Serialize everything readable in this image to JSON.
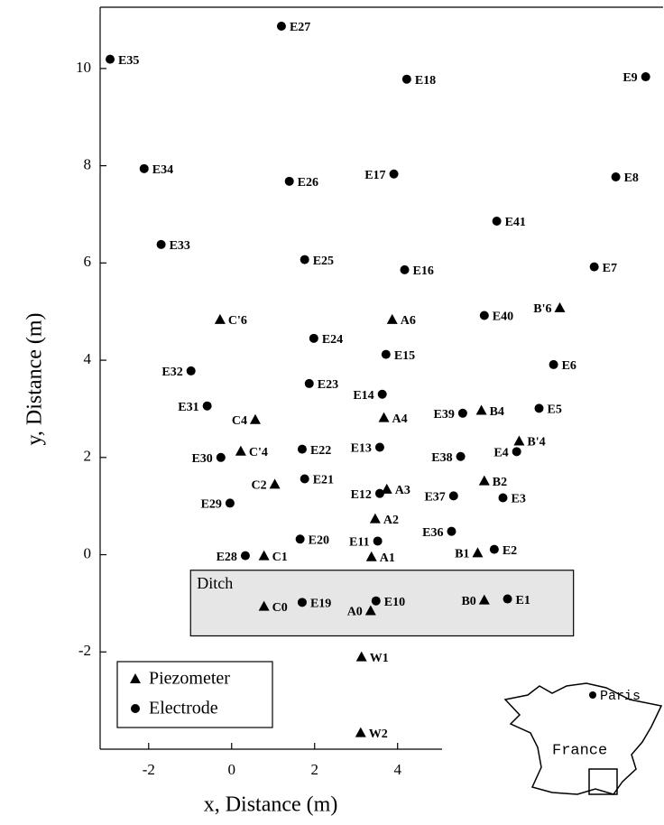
{
  "chart_data": {
    "type": "scatter",
    "xlabel": "x, Distance (m)",
    "ylabel": "y, Distance (m)",
    "xlim": [
      -3.17,
      10.4
    ],
    "ylim": [
      -4,
      11.26
    ],
    "xticks": [
      -2,
      0,
      2,
      4
    ],
    "yticks": [
      -2,
      0,
      2,
      4,
      6,
      8,
      10
    ],
    "legend": "lower left",
    "series": [
      {
        "name": "Piezometer",
        "marker": "triangle",
        "color": "#000000",
        "labels": [
          "C'6",
          "A6",
          "B'6",
          "C4",
          "B4",
          "A4",
          "B'4",
          "C'4",
          "B2",
          "C2",
          "A3",
          "A2",
          "C1",
          "A1",
          "B1",
          "C0",
          "B0",
          "A0",
          "W1",
          "W2"
        ],
        "x": [
          -0.28,
          3.87,
          7.91,
          0.57,
          6.02,
          3.67,
          6.93,
          0.22,
          6.09,
          1.04,
          3.74,
          3.46,
          0.78,
          3.37,
          5.93,
          0.78,
          6.09,
          3.35,
          3.13,
          3.11
        ],
        "values": [
          4.84,
          4.84,
          5.08,
          2.78,
          2.97,
          2.82,
          2.34,
          2.13,
          1.52,
          1.45,
          1.35,
          0.74,
          -0.02,
          -0.04,
          0.04,
          -1.06,
          -0.93,
          -1.15,
          -2.1,
          -3.66
        ]
      },
      {
        "name": "Electrode",
        "marker": "circle",
        "color": "#000000",
        "labels": [
          "E27",
          "E35",
          "E18",
          "E9",
          "E34",
          "E26",
          "E17",
          "E8",
          "E41",
          "E33",
          "E25",
          "E16",
          "E7",
          "E40",
          "E24",
          "E15",
          "E6",
          "E32",
          "E23",
          "E14",
          "E31",
          "E39",
          "E5",
          "E22",
          "E13",
          "E4",
          "E30",
          "E38",
          "E21",
          "E12",
          "E37",
          "E3",
          "E29",
          "E36",
          "E20",
          "E11",
          "E2",
          "E28",
          "E19",
          "E10",
          "E1"
        ],
        "x": [
          1.2,
          -2.93,
          4.22,
          9.98,
          -2.11,
          1.39,
          3.91,
          9.26,
          6.39,
          -1.7,
          1.76,
          4.17,
          8.74,
          6.09,
          1.98,
          3.72,
          7.76,
          -0.98,
          1.87,
          3.63,
          -0.59,
          5.57,
          7.41,
          1.7,
          3.57,
          6.87,
          -0.26,
          5.52,
          1.76,
          3.57,
          5.35,
          6.54,
          -0.04,
          5.3,
          1.65,
          3.52,
          6.33,
          0.33,
          1.7,
          3.48,
          6.65
        ],
        "values": [
          10.87,
          10.19,
          9.78,
          9.83,
          7.94,
          7.68,
          7.83,
          7.77,
          6.86,
          6.38,
          6.07,
          5.86,
          5.92,
          4.92,
          4.45,
          4.12,
          3.91,
          3.78,
          3.52,
          3.3,
          3.06,
          2.91,
          3.01,
          2.17,
          2.21,
          2.12,
          2.0,
          2.02,
          1.56,
          1.26,
          1.21,
          1.17,
          1.06,
          0.48,
          0.32,
          0.28,
          0.11,
          -0.02,
          -0.98,
          -0.95,
          -0.91
        ]
      }
    ],
    "ditch": {
      "label": "Ditch",
      "x": [
        -0.99,
        8.24
      ],
      "y": [
        -0.32,
        -1.67
      ],
      "color": "#e6e6e6"
    },
    "inset": {
      "city": "Paris",
      "country": "France"
    }
  }
}
